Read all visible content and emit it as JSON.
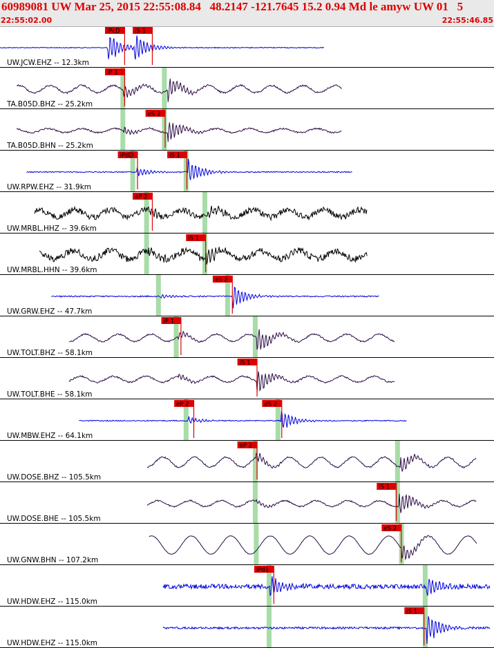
{
  "header": {
    "title": "60989081 UW Mar 25, 2015 22:55:08.84   48.2147 -121.7645 15.2 0.94 Md le amyw UW 01   5",
    "time_start": "22:55:02.00",
    "time_end": "22:55:46.85"
  },
  "colors": {
    "header_text": "#dd0000",
    "header_bg": "#e9e9e9",
    "trace_blue": "#0000dd",
    "trace_dark": "#2a0a44",
    "trace_black": "#000000",
    "pick_red": "#dd0000",
    "window_green": "#a8dca8"
  },
  "chart_data": {
    "type": "line",
    "x_unit": "seconds",
    "xlim": [
      "22:55:02.00",
      "22:55:46.85"
    ],
    "traces": [
      {
        "label": "UW.JCW.EHZ -- 12.3km",
        "color": "blue",
        "start": 0.0,
        "end": 32.8,
        "picks": [
          {
            "text": "iPcD",
            "t": 10.7
          },
          {
            "text": "iS 1",
            "t": 13.5
          }
        ],
        "green": [],
        "events": [
          {
            "t": 10.9,
            "amp": 1.0
          },
          {
            "t": 13.6,
            "amp": 1.0
          }
        ],
        "noise": 0.04,
        "wave": 0.0,
        "wavelen": 4.0
      },
      {
        "label": "TA.B05D.BHZ -- 25.2km",
        "color": "dark",
        "start": 1.7,
        "end": 34.6,
        "picks": [
          {
            "text": "iP 1",
            "t": 10.7
          }
        ],
        "green": [
          12.4,
          16.6
        ],
        "events": [
          {
            "t": 12.5,
            "amp": 0.4
          },
          {
            "t": 17.0,
            "amp": 0.75
          }
        ],
        "noise": 0.08,
        "wave": 0.22,
        "wavelen": 3.2
      },
      {
        "label": "TA.B05D.BHN -- 25.2km",
        "color": "dark",
        "start": 1.7,
        "end": 34.6,
        "picks": [
          {
            "text": "eS 2",
            "t": 14.8
          }
        ],
        "green": [
          12.4,
          16.6
        ],
        "events": [
          {
            "t": 12.5,
            "amp": 0.25
          },
          {
            "t": 17.0,
            "amp": 0.85
          }
        ],
        "noise": 0.07,
        "wave": 0.12,
        "wavelen": 3.4
      },
      {
        "label": "UW.RPW.EHZ -- 31.9km",
        "color": "blue",
        "start": 2.7,
        "end": 35.7,
        "picks": [
          {
            "text": "iPdD",
            "t": 12.0
          },
          {
            "text": "iS 1",
            "t": 17.0
          }
        ],
        "green": [
          13.4,
          18.8
        ],
        "events": [
          {
            "t": 13.8,
            "amp": 0.35
          },
          {
            "t": 19.0,
            "amp": 0.9
          }
        ],
        "noise": 0.05,
        "wave": 0.0,
        "wavelen": 4.0
      },
      {
        "label": "UW.MRBL.HHZ -- 39.6km",
        "color": "black",
        "start": 3.5,
        "end": 37.2,
        "picks": [
          {
            "text": "eP 2",
            "t": 13.5
          }
        ],
        "green": [
          14.8,
          20.7
        ],
        "events": [
          {
            "t": 15.0,
            "amp": 0.3
          },
          {
            "t": 21.0,
            "amp": 0.45
          }
        ],
        "noise": 0.28,
        "wave": 0.22,
        "wavelen": 3.6
      },
      {
        "label": "UW.MRBL.HHN -- 39.6km",
        "color": "black",
        "start": 4.0,
        "end": 37.2,
        "picks": [
          {
            "text": "iS 1",
            "t": 18.9
          }
        ],
        "green": [
          14.8,
          20.7
        ],
        "events": [
          {
            "t": 15.0,
            "amp": 0.3
          },
          {
            "t": 20.8,
            "amp": 0.6
          }
        ],
        "noise": 0.32,
        "wave": 0.25,
        "wavelen": 3.8
      },
      {
        "label": "UW.GRW.EHZ -- 47.7km",
        "color": "blue",
        "start": 5.2,
        "end": 38.4,
        "picks": [
          {
            "text": "eS 2",
            "t": 21.6
          }
        ],
        "green": [
          16.0,
          23.0
        ],
        "events": [
          {
            "t": 16.2,
            "amp": 0.15
          },
          {
            "t": 23.5,
            "amp": 0.85
          }
        ],
        "noise": 0.06,
        "wave": 0.0,
        "wavelen": 4.0
      },
      {
        "label": "UW.TOLT.BHZ -- 58.1km",
        "color": "dark",
        "start": 7.0,
        "end": 40.0,
        "picks": [
          {
            "text": "iP 1",
            "t": 16.4
          }
        ],
        "green": [
          17.8,
          25.8
        ],
        "events": [
          {
            "t": 18.0,
            "amp": 0.3
          },
          {
            "t": 26.0,
            "amp": 0.85
          }
        ],
        "noise": 0.07,
        "wave": 0.22,
        "wavelen": 3.3
      },
      {
        "label": "UW.TOLT.BHE -- 58.1km",
        "color": "dark",
        "start": 7.0,
        "end": 40.0,
        "picks": [
          {
            "text": "iS 1",
            "t": 24.1
          }
        ],
        "green": [],
        "events": [
          {
            "t": 18.0,
            "amp": 0.2
          },
          {
            "t": 26.0,
            "amp": 0.95
          }
        ],
        "noise": 0.07,
        "wave": 0.18,
        "wavelen": 3.3
      },
      {
        "label": "UW.MBW.EHZ -- 64.1km",
        "color": "blue",
        "start": 8.0,
        "end": 41.2,
        "picks": [
          {
            "text": "eP 2",
            "t": 17.7
          },
          {
            "text": "eS 2",
            "t": 26.6
          }
        ],
        "green": [
          18.8,
          28.1
        ],
        "events": [
          {
            "t": 19.0,
            "amp": 0.25
          },
          {
            "t": 28.4,
            "amp": 0.75
          }
        ],
        "noise": 0.05,
        "wave": 0.0,
        "wavelen": 4.0
      },
      {
        "label": "UW.DOSE.BHZ -- 105.5km",
        "color": "dark",
        "start": 14.9,
        "end": 48.2,
        "picks": [
          {
            "text": "eP 2",
            "t": 24.1
          }
        ],
        "green": [
          25.8,
          40.2
        ],
        "events": [
          {
            "t": 25.9,
            "amp": 0.3
          },
          {
            "t": 40.5,
            "amp": 0.6
          }
        ],
        "noise": 0.07,
        "wave": 0.3,
        "wavelen": 3.2
      },
      {
        "label": "UW.DOSE.BHE -- 105.5km",
        "color": "dark",
        "start": 14.9,
        "end": 48.2,
        "picks": [
          {
            "text": "iS 1",
            "t": 38.2
          }
        ],
        "green": [
          25.8,
          40.2
        ],
        "events": [
          {
            "t": 25.9,
            "amp": 0.15
          },
          {
            "t": 40.4,
            "amp": 0.85
          }
        ],
        "noise": 0.07,
        "wave": 0.18,
        "wavelen": 3.2
      },
      {
        "label": "UW.GNW.BHN -- 107.2km",
        "color": "dark",
        "start": 15.1,
        "end": 48.3,
        "picks": [
          {
            "text": "eS 2",
            "t": 38.7
          }
        ],
        "green": [
          25.9,
          40.6
        ],
        "events": [
          {
            "t": 40.6,
            "amp": 0.6
          }
        ],
        "noise": 0.02,
        "wave": 0.55,
        "wavelen": 4.0
      },
      {
        "label": "UW.HDW.EHZ -- 115.0km",
        "color": "blue",
        "start": 16.5,
        "end": 49.6,
        "picks": [
          {
            "text": "iPd1",
            "t": 25.8
          }
        ],
        "green": [
          27.2,
          43.0
        ],
        "events": [
          {
            "t": 27.3,
            "amp": 0.7
          },
          {
            "t": 43.2,
            "amp": 0.8
          }
        ],
        "noise": 0.22,
        "wave": 0.0,
        "wavelen": 4.0
      },
      {
        "label": "UW.HDW.EHZ -- 115.0km",
        "color": "blue",
        "start": 16.5,
        "end": 49.6,
        "picks": [
          {
            "text": "iS 1",
            "t": 41.0
          }
        ],
        "green": [
          27.2,
          43.0
        ],
        "events": [
          {
            "t": 43.2,
            "amp": 1.0
          }
        ],
        "noise": 0.1,
        "wave": 0.0,
        "wavelen": 4.0
      }
    ]
  }
}
